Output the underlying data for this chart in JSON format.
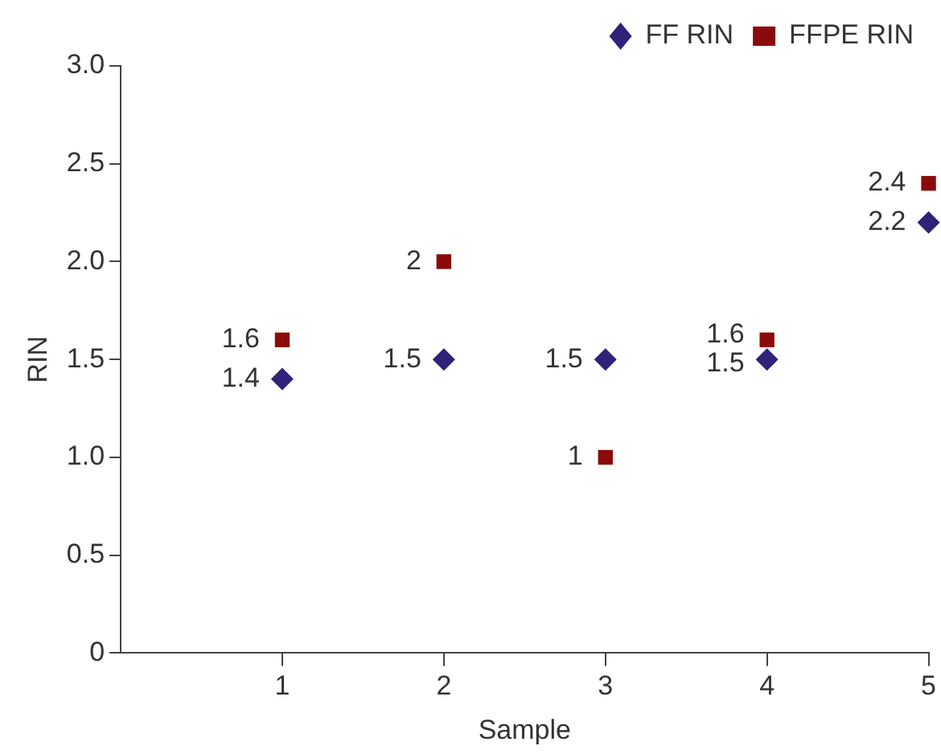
{
  "chart_data": {
    "type": "scatter",
    "xlabel": "Sample",
    "ylabel": "RIN",
    "x": [
      1,
      2,
      3,
      4,
      5
    ],
    "series": [
      {
        "name": "FF RIN",
        "color": "#2e2378",
        "marker": "diamond",
        "values": [
          1.4,
          1.5,
          1.5,
          1.5,
          2.2
        ]
      },
      {
        "name": "FFPE RIN",
        "color": "#8b0a0a",
        "marker": "square",
        "values": [
          1.6,
          2,
          1,
          1.6,
          2.4
        ]
      }
    ],
    "xlim": [
      0,
      5
    ],
    "xticks": [
      1,
      2,
      3,
      4,
      5
    ],
    "ylim": [
      0,
      3
    ],
    "yticks": [
      0,
      0.5,
      {
        "value": 1,
        "label": "1.0"
      },
      1.5,
      {
        "value": 2,
        "label": "2.0"
      },
      2.5,
      {
        "value": 3,
        "label": "3.0"
      }
    ],
    "data_labels": true,
    "grid": false,
    "legend": "top right"
  }
}
